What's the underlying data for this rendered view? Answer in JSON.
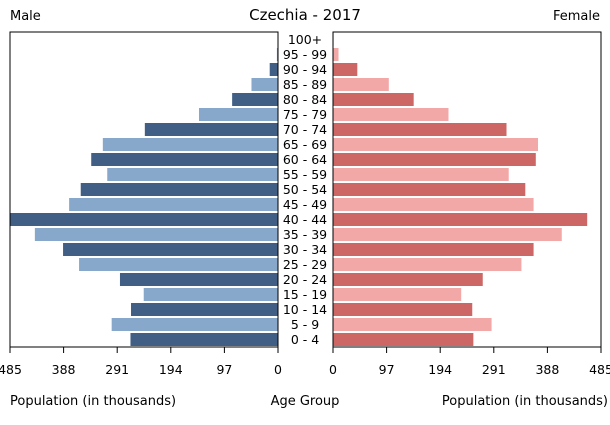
{
  "title": "Czechia - 2017",
  "left_header": "Male",
  "right_header": "Female",
  "bottom_left_label": "Population (in thousands)",
  "bottom_center_label": "Age Group",
  "bottom_right_label": "Population (in thousands)",
  "colors": {
    "male_dark": "#415f85",
    "male_light": "#87a7cb",
    "female_dark": "#cc6766",
    "female_light": "#f2a8a7"
  },
  "chart_data": {
    "type": "bar",
    "orientation": "horizontal-population-pyramid",
    "categories": [
      "0 - 4",
      "5 - 9",
      "10 - 14",
      "15 - 19",
      "20 - 24",
      "25 - 29",
      "30 - 34",
      "35 - 39",
      "40 - 44",
      "45 - 49",
      "50 - 54",
      "55 - 59",
      "60 - 64",
      "65 - 69",
      "70 - 74",
      "75 - 79",
      "80 - 84",
      "85 - 89",
      "90 - 94",
      "95 - 99",
      "100+"
    ],
    "series": [
      {
        "name": "Male",
        "values": [
          267,
          301,
          266,
          243,
          286,
          360,
          389,
          440,
          485,
          378,
          357,
          309,
          338,
          317,
          241,
          143,
          83,
          48,
          15,
          2,
          0
        ]
      },
      {
        "name": "Female",
        "values": [
          254,
          287,
          252,
          232,
          271,
          341,
          363,
          414,
          460,
          363,
          348,
          318,
          367,
          371,
          314,
          209,
          146,
          101,
          44,
          10,
          1
        ]
      }
    ],
    "xlim": [
      0,
      485
    ],
    "xticks": [
      485,
      388,
      291,
      194,
      97,
      0
    ],
    "xtick_labels": [
      "485",
      "388",
      "291",
      "194",
      "97",
      "0"
    ]
  }
}
